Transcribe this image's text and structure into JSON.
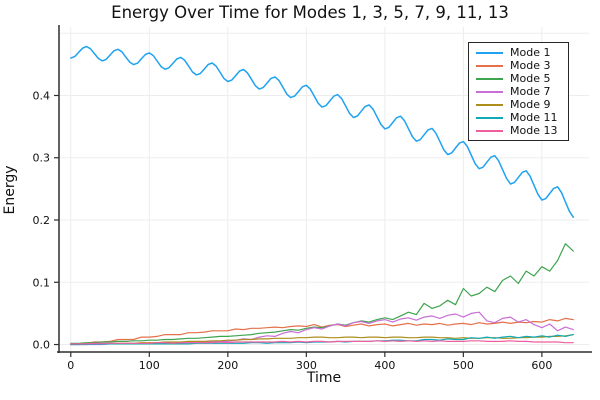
{
  "title": "Energy Over Time for Modes 1, 3, 5, 7, 9, 11, 13",
  "chart_data": {
    "type": "line",
    "title": "Energy Over Time for Modes 1, 3, 5, 7, 9, 11, 13",
    "xlabel": "Time",
    "ylabel": "Energy",
    "xlim": [
      -15,
      660
    ],
    "ylim": [
      -0.012,
      0.51
    ],
    "grid": true,
    "grid_color": "#ededed",
    "axis_color": "#2f2f2f",
    "legend_position": "top-right",
    "xticks": [
      {
        "v": 0,
        "label": "0"
      },
      {
        "v": 100,
        "label": "100"
      },
      {
        "v": 200,
        "label": "200"
      },
      {
        "v": 300,
        "label": "300"
      },
      {
        "v": 400,
        "label": "400"
      },
      {
        "v": 500,
        "label": "500"
      },
      {
        "v": 600,
        "label": "600"
      }
    ],
    "yticks": [
      {
        "v": 0.0,
        "label": "0.0"
      },
      {
        "v": 0.1,
        "label": "0.1"
      },
      {
        "v": 0.2,
        "label": "0.2"
      },
      {
        "v": 0.3,
        "label": "0.3"
      },
      {
        "v": 0.4,
        "label": "0.4"
      },
      {
        "v": 0.5,
        "label": ""
      }
    ],
    "series": [
      {
        "name": "Mode 1",
        "color": "#1fa2f2",
        "width": 1.5,
        "x_start": 0,
        "x_step": 5,
        "values": [
          0.46,
          0.4625,
          0.4692,
          0.4759,
          0.4786,
          0.4752,
          0.4675,
          0.4596,
          0.4556,
          0.458,
          0.4648,
          0.4717,
          0.4742,
          0.4704,
          0.462,
          0.4536,
          0.4496,
          0.4519,
          0.4589,
          0.4659,
          0.4684,
          0.4643,
          0.4554,
          0.4464,
          0.442,
          0.4444,
          0.4515,
          0.4586,
          0.4611,
          0.4566,
          0.4472,
          0.4377,
          0.433,
          0.4353,
          0.4425,
          0.4498,
          0.4522,
          0.4473,
          0.4375,
          0.4275,
          0.4224,
          0.4247,
          0.432,
          0.4394,
          0.4418,
          0.4365,
          0.4262,
          0.4158,
          0.4103,
          0.4126,
          0.42,
          0.4274,
          0.4299,
          0.4242,
          0.4134,
          0.4025,
          0.3966,
          0.399,
          0.4064,
          0.4139,
          0.4164,
          0.4103,
          0.3991,
          0.3877,
          0.3814,
          0.3838,
          0.3913,
          0.3989,
          0.4014,
          0.3949,
          0.3832,
          0.3714,
          0.3647,
          0.367,
          0.3747,
          0.3824,
          0.3848,
          0.378,
          0.3658,
          0.3535,
          0.3464,
          0.3488,
          0.3565,
          0.3643,
          0.3668,
          0.3595,
          0.3468,
          0.3341,
          0.3266,
          0.329,
          0.3368,
          0.3447,
          0.3471,
          0.3395,
          0.3264,
          0.3131,
          0.3052,
          0.3077,
          0.3156,
          0.3235,
          0.326,
          0.318,
          0.3044,
          0.2906,
          0.2824,
          0.2848,
          0.2928,
          0.3008,
          0.3033,
          0.2949,
          0.2808,
          0.2666,
          0.2579,
          0.2604,
          0.2684,
          0.2766,
          0.2791,
          0.2703,
          0.2557,
          0.2411,
          0.232,
          0.2344,
          0.2426,
          0.2508,
          0.2533,
          0.2441,
          0.2291,
          0.214,
          0.2045
        ]
      },
      {
        "name": "Mode 3",
        "color": "#e4714b",
        "width": 1.2,
        "x_start": 0,
        "x_step": 10,
        "values": [
          0.001,
          0.001,
          0.002,
          0.004,
          0.004,
          0.005,
          0.008,
          0.008,
          0.008,
          0.012,
          0.012,
          0.013,
          0.016,
          0.016,
          0.016,
          0.019,
          0.019,
          0.02,
          0.022,
          0.022,
          0.022,
          0.025,
          0.024,
          0.026,
          0.026,
          0.027,
          0.028,
          0.027,
          0.029,
          0.03,
          0.029,
          0.032,
          0.028,
          0.031,
          0.032,
          0.029,
          0.031,
          0.033,
          0.03,
          0.032,
          0.033,
          0.03,
          0.032,
          0.034,
          0.031,
          0.033,
          0.032,
          0.034,
          0.031,
          0.033,
          0.034,
          0.032,
          0.035,
          0.033,
          0.034,
          0.036,
          0.034,
          0.036,
          0.035,
          0.037,
          0.036,
          0.04,
          0.038,
          0.042,
          0.04
        ]
      },
      {
        "name": "Mode 5",
        "color": "#3ea44e",
        "width": 1.2,
        "x_start": 0,
        "x_step": 10,
        "values": [
          0.002,
          0.002,
          0.003,
          0.003,
          0.004,
          0.004,
          0.005,
          0.005,
          0.006,
          0.006,
          0.007,
          0.007,
          0.008,
          0.008,
          0.009,
          0.01,
          0.01,
          0.011,
          0.012,
          0.013,
          0.013,
          0.014,
          0.015,
          0.016,
          0.018,
          0.019,
          0.02,
          0.022,
          0.024,
          0.023,
          0.026,
          0.028,
          0.027,
          0.03,
          0.033,
          0.031,
          0.035,
          0.038,
          0.036,
          0.04,
          0.043,
          0.04,
          0.046,
          0.052,
          0.048,
          0.066,
          0.058,
          0.062,
          0.071,
          0.064,
          0.09,
          0.078,
          0.082,
          0.092,
          0.085,
          0.103,
          0.11,
          0.098,
          0.118,
          0.11,
          0.125,
          0.118,
          0.135,
          0.162,
          0.15
        ]
      },
      {
        "name": "Mode 7",
        "color": "#c96ed6",
        "width": 1.2,
        "x_start": 0,
        "x_step": 10,
        "values": [
          0.0,
          0.0,
          0.0,
          0.0,
          0.0,
          0.001,
          0.001,
          0.001,
          0.001,
          0.001,
          0.001,
          0.002,
          0.002,
          0.002,
          0.002,
          0.003,
          0.003,
          0.004,
          0.004,
          0.005,
          0.005,
          0.007,
          0.009,
          0.008,
          0.012,
          0.014,
          0.013,
          0.018,
          0.021,
          0.019,
          0.024,
          0.027,
          0.025,
          0.03,
          0.033,
          0.03,
          0.035,
          0.037,
          0.034,
          0.038,
          0.04,
          0.036,
          0.041,
          0.043,
          0.039,
          0.044,
          0.046,
          0.042,
          0.047,
          0.049,
          0.044,
          0.05,
          0.052,
          0.038,
          0.035,
          0.042,
          0.044,
          0.036,
          0.04,
          0.032,
          0.027,
          0.033,
          0.022,
          0.028,
          0.024
        ]
      },
      {
        "name": "Mode 9",
        "color": "#ad8e1c",
        "width": 1.2,
        "x_start": 0,
        "x_step": 10,
        "values": [
          0.0,
          0.0,
          0.001,
          0.001,
          0.001,
          0.001,
          0.002,
          0.002,
          0.002,
          0.003,
          0.003,
          0.003,
          0.004,
          0.004,
          0.004,
          0.005,
          0.005,
          0.005,
          0.006,
          0.006,
          0.007,
          0.007,
          0.008,
          0.008,
          0.009,
          0.009,
          0.01,
          0.01,
          0.01,
          0.011,
          0.011,
          0.012,
          0.012,
          0.011,
          0.011,
          0.012,
          0.012,
          0.011,
          0.012,
          0.012,
          0.011,
          0.012,
          0.012,
          0.011,
          0.011,
          0.012,
          0.012,
          0.011,
          0.011,
          0.01,
          0.011,
          0.01,
          0.01,
          0.011,
          0.011,
          0.01,
          0.01,
          0.011,
          0.011,
          0.012,
          0.012,
          0.013,
          0.013,
          0.014,
          0.016
        ]
      },
      {
        "name": "Mode 11",
        "color": "#0faab8",
        "width": 1.2,
        "x_start": 0,
        "x_step": 10,
        "values": [
          0.0,
          0.0,
          0.0,
          0.001,
          0.001,
          0.001,
          0.001,
          0.001,
          0.001,
          0.001,
          0.001,
          0.001,
          0.001,
          0.001,
          0.001,
          0.001,
          0.002,
          0.002,
          0.002,
          0.002,
          0.002,
          0.002,
          0.002,
          0.003,
          0.003,
          0.002,
          0.003,
          0.003,
          0.003,
          0.004,
          0.003,
          0.004,
          0.004,
          0.004,
          0.005,
          0.004,
          0.005,
          0.005,
          0.005,
          0.006,
          0.006,
          0.007,
          0.007,
          0.006,
          0.006,
          0.008,
          0.008,
          0.007,
          0.009,
          0.008,
          0.008,
          0.011,
          0.01,
          0.012,
          0.01,
          0.012,
          0.013,
          0.011,
          0.013,
          0.012,
          0.014,
          0.012,
          0.015,
          0.013,
          0.016
        ]
      },
      {
        "name": "Mode 13",
        "color": "#ef5f9f",
        "width": 1.2,
        "x_start": 0,
        "x_step": 10,
        "values": [
          0.001,
          0.001,
          0.001,
          0.002,
          0.002,
          0.002,
          0.002,
          0.002,
          0.002,
          0.002,
          0.002,
          0.003,
          0.003,
          0.002,
          0.003,
          0.003,
          0.003,
          0.003,
          0.003,
          0.004,
          0.003,
          0.004,
          0.004,
          0.004,
          0.004,
          0.004,
          0.004,
          0.005,
          0.004,
          0.005,
          0.004,
          0.005,
          0.005,
          0.004,
          0.005,
          0.005,
          0.005,
          0.005,
          0.005,
          0.006,
          0.005,
          0.006,
          0.005,
          0.006,
          0.005,
          0.006,
          0.005,
          0.006,
          0.005,
          0.005,
          0.005,
          0.006,
          0.006,
          0.005,
          0.005,
          0.005,
          0.006,
          0.005,
          0.005,
          0.004,
          0.004,
          0.004,
          0.004,
          0.003,
          0.003
        ]
      }
    ]
  }
}
